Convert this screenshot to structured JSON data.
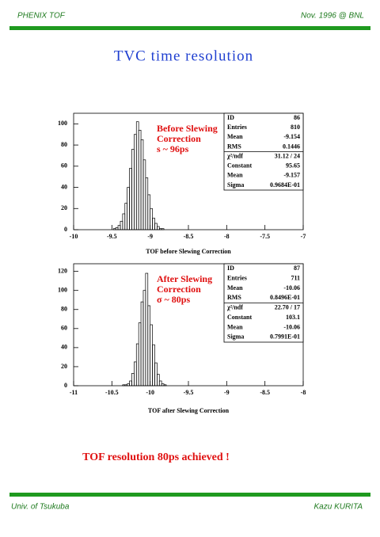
{
  "header": {
    "left": "PHENIX TOF",
    "right": "Nov. 1996 @ BNL"
  },
  "title": "TVC time resolution",
  "chart_data": [
    {
      "type": "histogram",
      "annotation": [
        "Before Slewing",
        "Correction",
        "s ~ 96ps"
      ],
      "x_label": "TOF before Slewing Correction",
      "bins": [
        -9.6,
        -9.57,
        -9.54,
        -9.51,
        -9.48,
        -9.45,
        -9.42,
        -9.39,
        -9.36,
        -9.33,
        -9.3,
        -9.27,
        -9.24,
        -9.21,
        -9.18,
        -9.15,
        -9.12,
        -9.09,
        -9.06,
        -9.03,
        -9.0,
        -8.97,
        -8.94,
        -8.91,
        -8.88,
        -8.85,
        -8.82,
        -8.79,
        -8.76,
        -8.73,
        -8.7
      ],
      "values": [
        0,
        0,
        0,
        0,
        1,
        2,
        4,
        8,
        15,
        25,
        40,
        58,
        76,
        90,
        102,
        94,
        85,
        66,
        49,
        33,
        20,
        11,
        6,
        3,
        1,
        1,
        0,
        0,
        0,
        0
      ],
      "color": "#000000",
      "xlim": [
        -10,
        -7
      ],
      "xticks": [
        -10,
        -9.5,
        -9,
        -8.5,
        -8,
        -7.5,
        -7
      ],
      "ylim": [
        0,
        110
      ],
      "yticks": [
        0,
        20,
        40,
        60,
        80,
        100
      ],
      "stats": [
        [
          "ID",
          "86"
        ],
        [
          "Entries",
          "810"
        ],
        [
          "Mean",
          "-9.154"
        ],
        [
          "RMS",
          "0.1446"
        ],
        [
          "χ²/ndf",
          "31.12  /  24"
        ],
        [
          "Constant",
          "95.65"
        ],
        [
          "Mean",
          "-9.157"
        ],
        [
          "Sigma",
          "0.9684E-01"
        ]
      ]
    },
    {
      "type": "histogram",
      "annotation": [
        "After Slewing",
        "Correction",
        "σ ~ 80ps"
      ],
      "x_label": "TOF after Slewing Correction",
      "bins": [
        -10.45,
        -10.42,
        -10.39,
        -10.36,
        -10.33,
        -10.3,
        -10.27,
        -10.24,
        -10.21,
        -10.18,
        -10.15,
        -10.12,
        -10.09,
        -10.06,
        -10.03,
        -10.0,
        -9.97,
        -9.94,
        -9.91,
        -9.88,
        -9.85,
        -9.82,
        -9.79,
        -9.76,
        -9.73,
        -9.7
      ],
      "values": [
        0,
        0,
        0,
        1,
        1,
        2,
        5,
        13,
        25,
        44,
        66,
        88,
        100,
        118,
        84,
        64,
        43,
        24,
        12,
        5,
        2,
        1,
        0,
        0,
        0
      ],
      "color": "#000000",
      "xlim": [
        -11,
        -8
      ],
      "xticks": [
        -11,
        -10.5,
        -10,
        -9.5,
        -9,
        -8.5,
        -8
      ],
      "ylim": [
        0,
        128
      ],
      "yticks": [
        0,
        20,
        40,
        60,
        80,
        100,
        120
      ],
      "stats": [
        [
          "ID",
          "87"
        ],
        [
          "Entries",
          "711"
        ],
        [
          "Mean",
          "-10.06"
        ],
        [
          "RMS",
          "0.8496E-01"
        ],
        [
          "χ²/ndf",
          "22.70  /  17"
        ],
        [
          "Constant",
          "103.1"
        ],
        [
          "Mean",
          "-10.06"
        ],
        [
          "Sigma",
          "0.7991E-01"
        ]
      ]
    }
  ],
  "conclusion": "TOF resolution 80ps achieved !",
  "footer": {
    "left": "Univ. of Tsukuba",
    "right": "Kazu KURITA"
  }
}
